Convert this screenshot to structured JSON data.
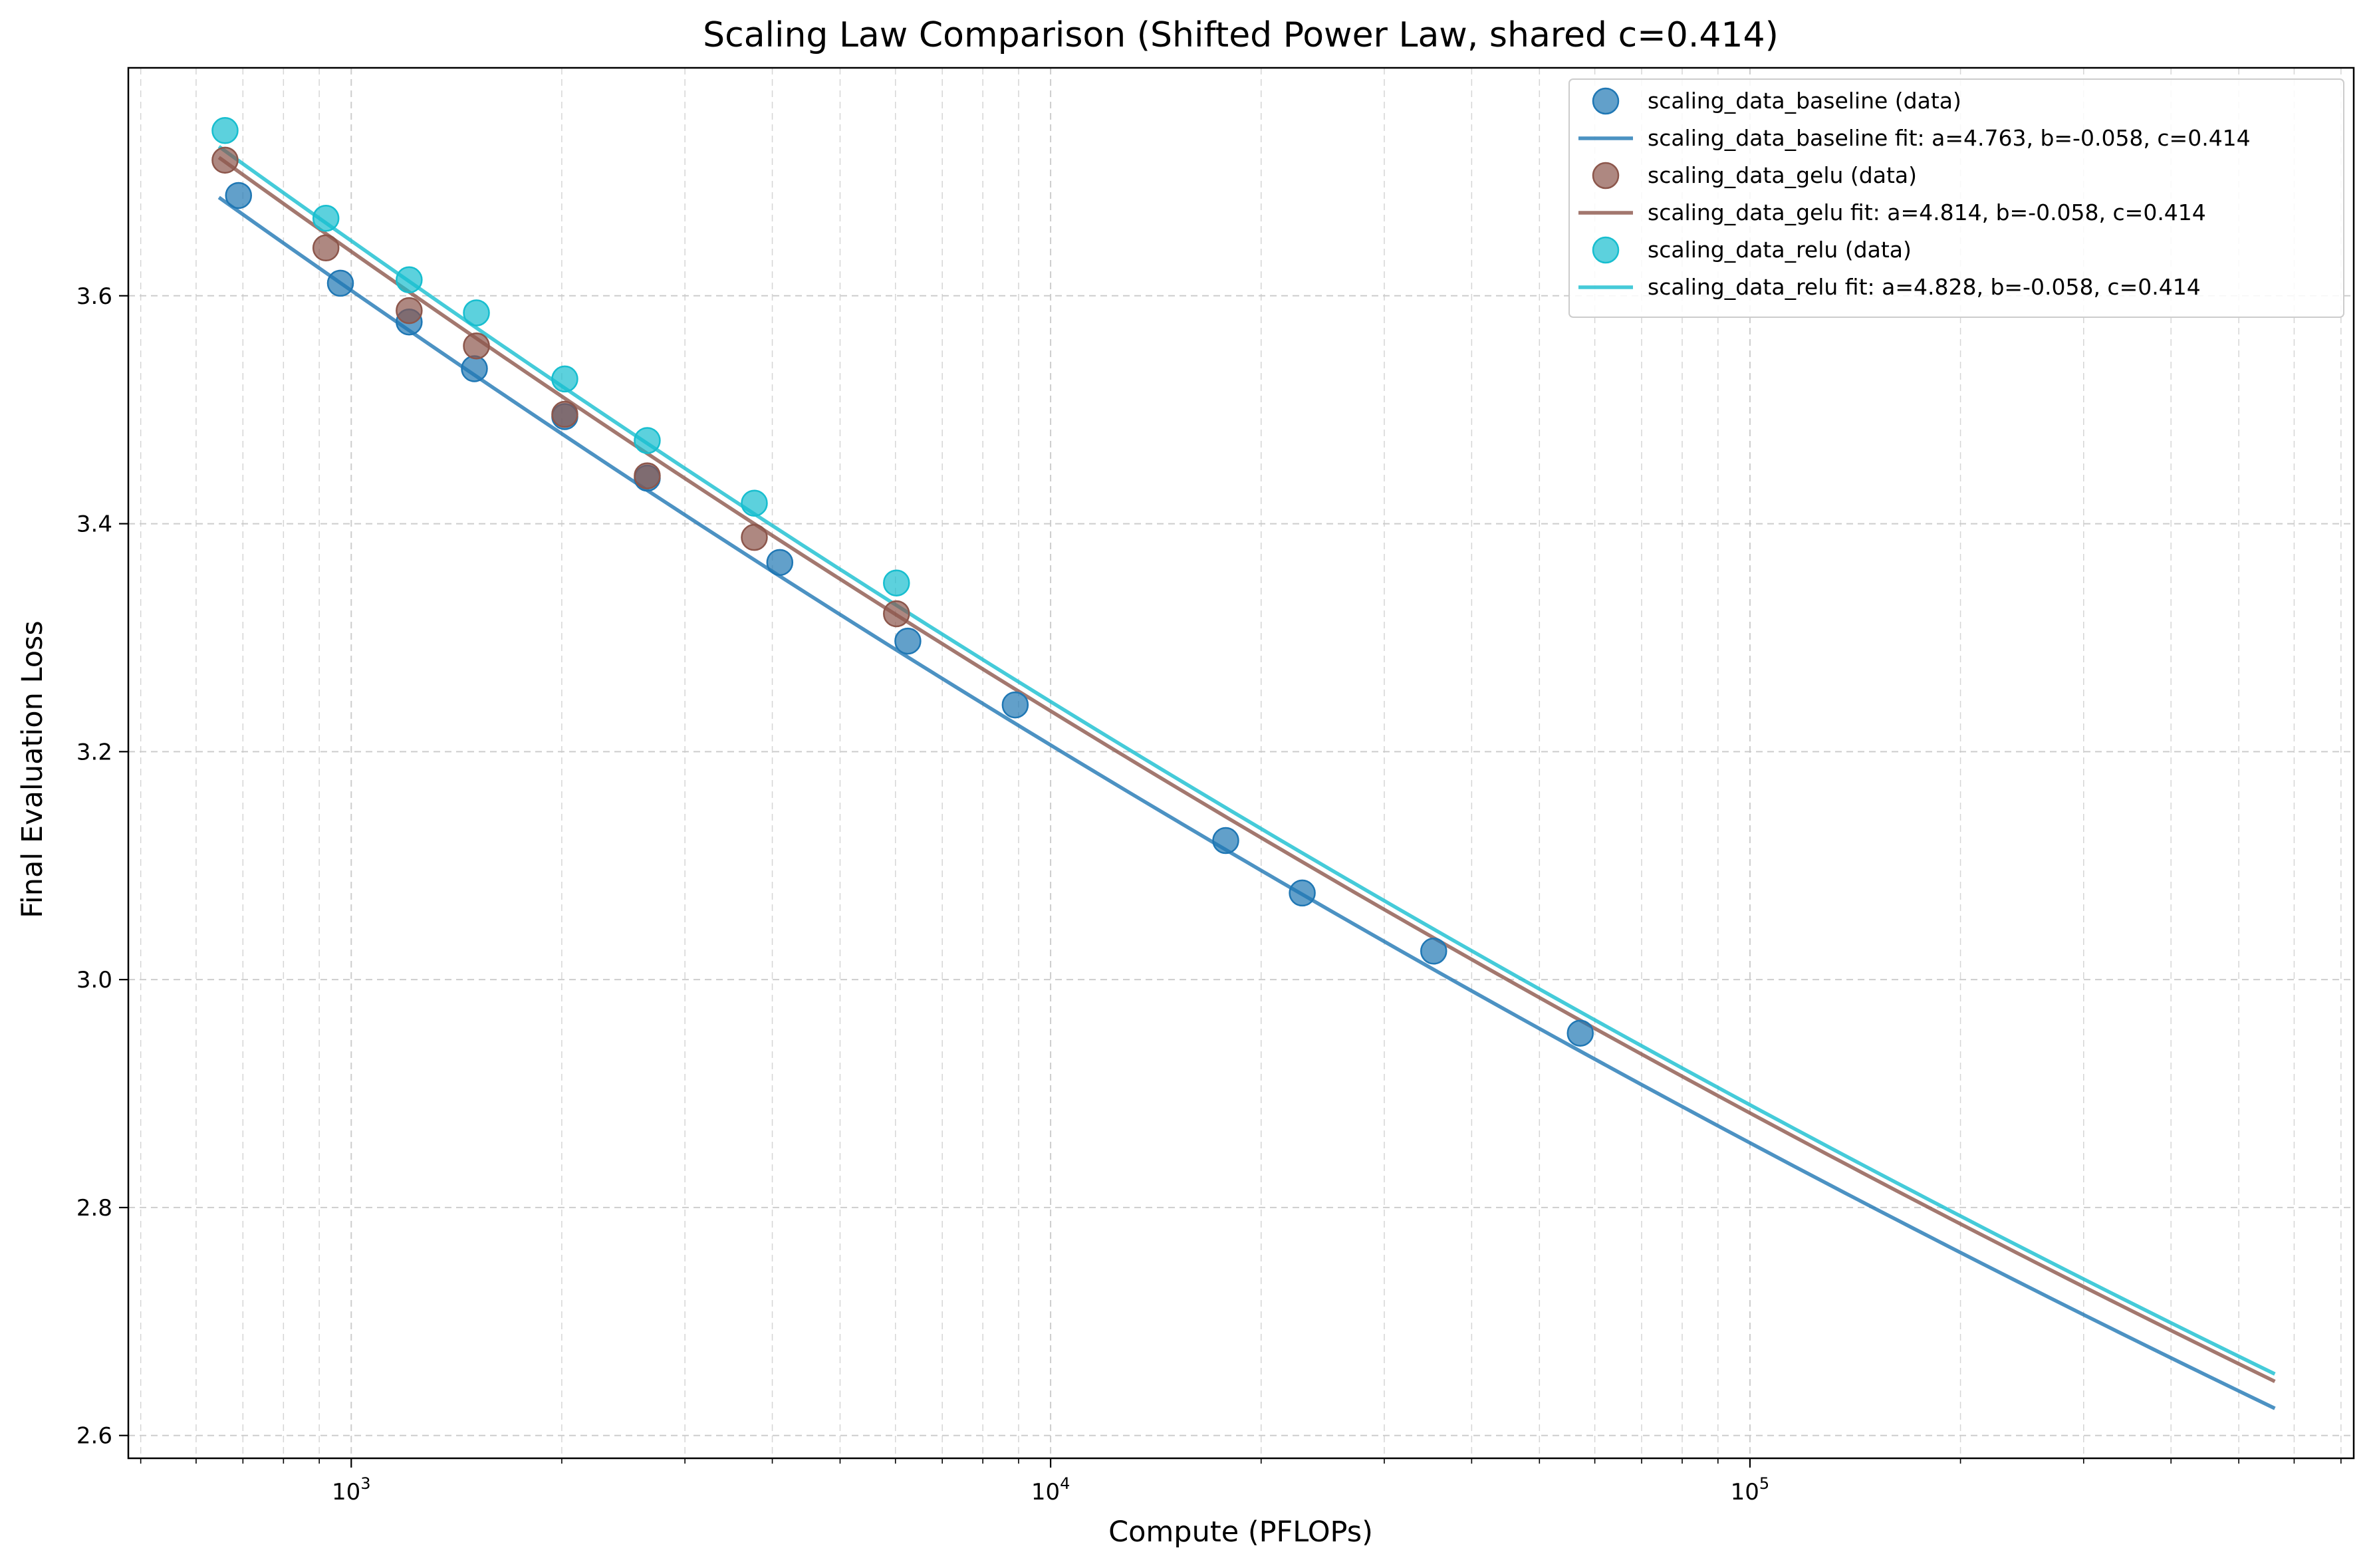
{
  "chart_data": {
    "type": "scatter",
    "title": "Scaling Law Comparison (Shifted Power Law, shared c=0.414)",
    "xlabel": "Compute (PFLOPs)",
    "ylabel": "Final Evaluation Loss",
    "xscale": "log",
    "xlim": [
      480,
      730000
    ],
    "ylim": [
      2.58,
      3.8
    ],
    "grid": true,
    "legend_position": "top-right",
    "x_ticks": [
      {
        "value": 1000,
        "base": "10",
        "exp": "3"
      },
      {
        "value": 10000,
        "base": "10",
        "exp": "4"
      },
      {
        "value": 100000,
        "base": "10",
        "exp": "5"
      }
    ],
    "y_ticks": [
      "2.6",
      "2.8",
      "3.0",
      "3.2",
      "3.4",
      "3.6"
    ],
    "fit_range": [
      650,
      560000
    ],
    "series": [
      {
        "name": "scaling_data_baseline (data)",
        "fit_label": "scaling_data_baseline fit: a=4.763, b=-0.058, c=0.414",
        "color": "#1f77b4",
        "a": 4.763,
        "b": -0.058,
        "c": 0.414,
        "points": [
          [
            690,
            3.688
          ],
          [
            965,
            3.611
          ],
          [
            1210,
            3.577
          ],
          [
            1500,
            3.536
          ],
          [
            2020,
            3.494
          ],
          [
            2650,
            3.44
          ],
          [
            4100,
            3.366
          ],
          [
            6250,
            3.297
          ],
          [
            8900,
            3.241
          ],
          [
            17800,
            3.122
          ],
          [
            22900,
            3.076
          ],
          [
            35300,
            3.025
          ],
          [
            57200,
            2.953
          ]
        ]
      },
      {
        "name": "scaling_data_gelu (data)",
        "fit_label": "scaling_data_gelu fit: a=4.814, b=-0.058, c=0.414",
        "color": "#8c564b",
        "a": 4.814,
        "b": -0.058,
        "c": 0.414,
        "points": [
          [
            660,
            3.719
          ],
          [
            920,
            3.642
          ],
          [
            1210,
            3.587
          ],
          [
            1510,
            3.556
          ],
          [
            2020,
            3.496
          ],
          [
            2650,
            3.442
          ],
          [
            3770,
            3.388
          ],
          [
            6020,
            3.321
          ]
        ]
      },
      {
        "name": "scaling_data_relu (data)",
        "fit_label": "scaling_data_relu fit: a=4.828, b=-0.058, c=0.414",
        "color": "#17becf",
        "a": 4.828,
        "b": -0.058,
        "c": 0.414,
        "points": [
          [
            660,
            3.745
          ],
          [
            920,
            3.668
          ],
          [
            1210,
            3.614
          ],
          [
            1510,
            3.585
          ],
          [
            2020,
            3.527
          ],
          [
            2650,
            3.473
          ],
          [
            3770,
            3.418
          ],
          [
            6020,
            3.348
          ]
        ]
      }
    ]
  }
}
